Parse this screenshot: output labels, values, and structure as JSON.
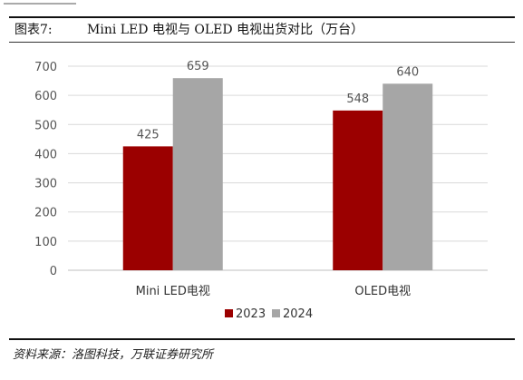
{
  "figure": {
    "number": "图表7:",
    "title": "Mini LED 电视与 OLED 电视出货对比（万台）",
    "source": "资料来源：洛图科技，万联证券研究所"
  },
  "colors": {
    "series_2023": "#9b0000",
    "series_2024": "#a6a6a6",
    "gridline": "#d9d9d9",
    "axis_text": "#555555"
  },
  "chart_data": {
    "type": "bar",
    "categories": [
      "Mini LED电视",
      "OLED电视"
    ],
    "series": [
      {
        "name": "2023",
        "values": [
          425,
          548
        ]
      },
      {
        "name": "2024",
        "values": [
          659,
          640
        ]
      }
    ],
    "yticks": [
      0,
      100,
      200,
      300,
      400,
      500,
      600,
      700
    ],
    "ylim": [
      0,
      700
    ],
    "grid": true,
    "legend": "bottom",
    "data_labels": true
  }
}
